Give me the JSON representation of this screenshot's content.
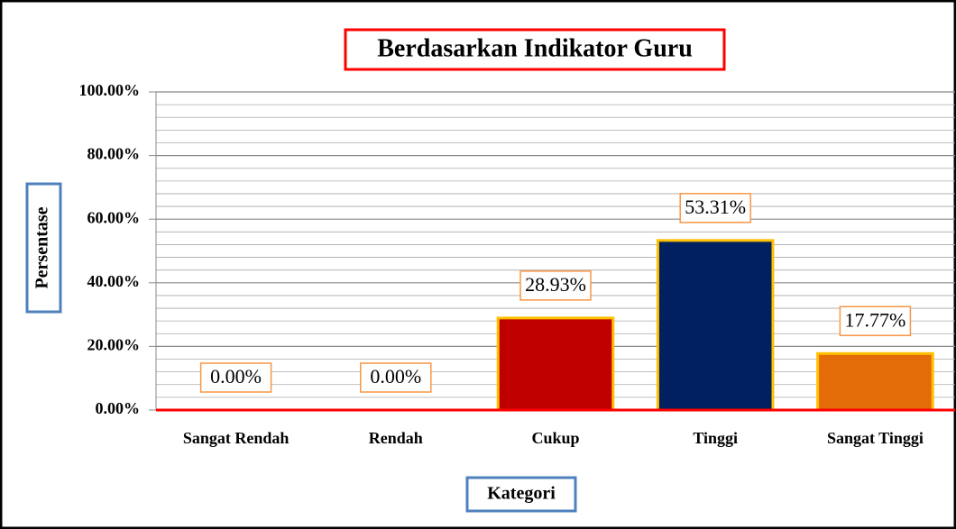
{
  "chart_data": {
    "type": "bar",
    "title": "Berdasarkan Indikator Guru",
    "y_label": "Persentase",
    "x_label": "Kategori",
    "categories": [
      "Sangat Rendah",
      "Rendah",
      "Cukup",
      "Tinggi",
      "Sangat Tinggi"
    ],
    "values": [
      0,
      0,
      28.93,
      53.31,
      17.77
    ],
    "value_labels": [
      "0.00%",
      "0.00%",
      "28.93%",
      "53.31%",
      "17.77%"
    ],
    "colors": [
      "#c00000",
      "#c00000",
      "#c00000",
      "#002060",
      "#e36c09"
    ],
    "ylim": [
      0,
      100
    ],
    "yticks": [
      {
        "value": 0,
        "label": "0.00%"
      },
      {
        "value": 20,
        "label": "20.00%"
      },
      {
        "value": 40,
        "label": "40.00%"
      },
      {
        "value": 60,
        "label": "60.00%"
      },
      {
        "value": 80,
        "label": "80.00%"
      },
      {
        "value": 100,
        "label": "100.00%"
      }
    ],
    "grid": true
  }
}
